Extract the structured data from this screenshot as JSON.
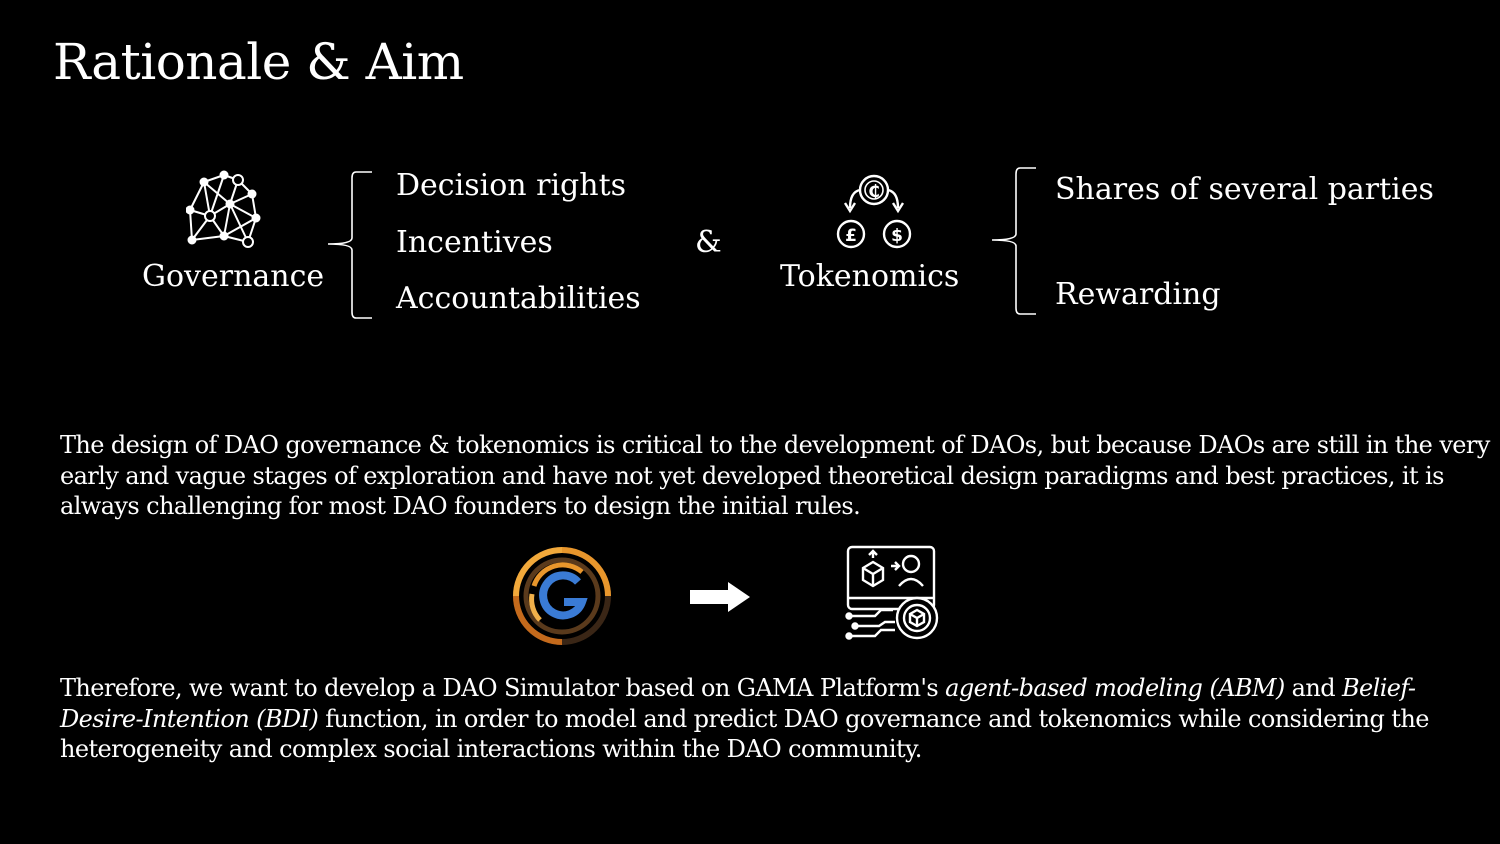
{
  "slide": {
    "title": "Rationale & Aim"
  },
  "governance": {
    "label": "Governance",
    "icon": "network-icon",
    "items": [
      "Decision rights",
      "Incentives",
      "Accountabilities"
    ]
  },
  "connector": "&",
  "tokenomics": {
    "label": "Tokenomics",
    "icon": "currency-exchange-icon",
    "items": [
      "Shares of several parties",
      "Rewarding"
    ]
  },
  "paragraph_1": "The design of DAO governance & tokenomics is critical to the development of DAOs, but because DAOs are still in the very early and vague stages of exploration and have not yet developed theoretical design paradigms and best practices, it is always challenging for most DAO founders to design the initial rules.",
  "paragraph_2": {
    "part_1": "Therefore, we want to develop a DAO Simulator based on GAMA Platform's ",
    "italic_1": "agent-based modeling (ABM)",
    "part_2": " and ",
    "italic_2": "Belief-Desire-Intention (BDI)",
    "part_3": " function, in order to model and predict DAO governance and tokenomics while considering the heterogeneity and complex social interactions within the DAO community."
  },
  "icons": {
    "gama_logo": "gama-logo-icon",
    "arrow": "arrow-right-icon",
    "simulator": "simulator-icon"
  },
  "colors": {
    "background": "#000000",
    "text": "#ffffff",
    "logo_orange": "#e8962c",
    "logo_blue": "#3a7bd5"
  }
}
